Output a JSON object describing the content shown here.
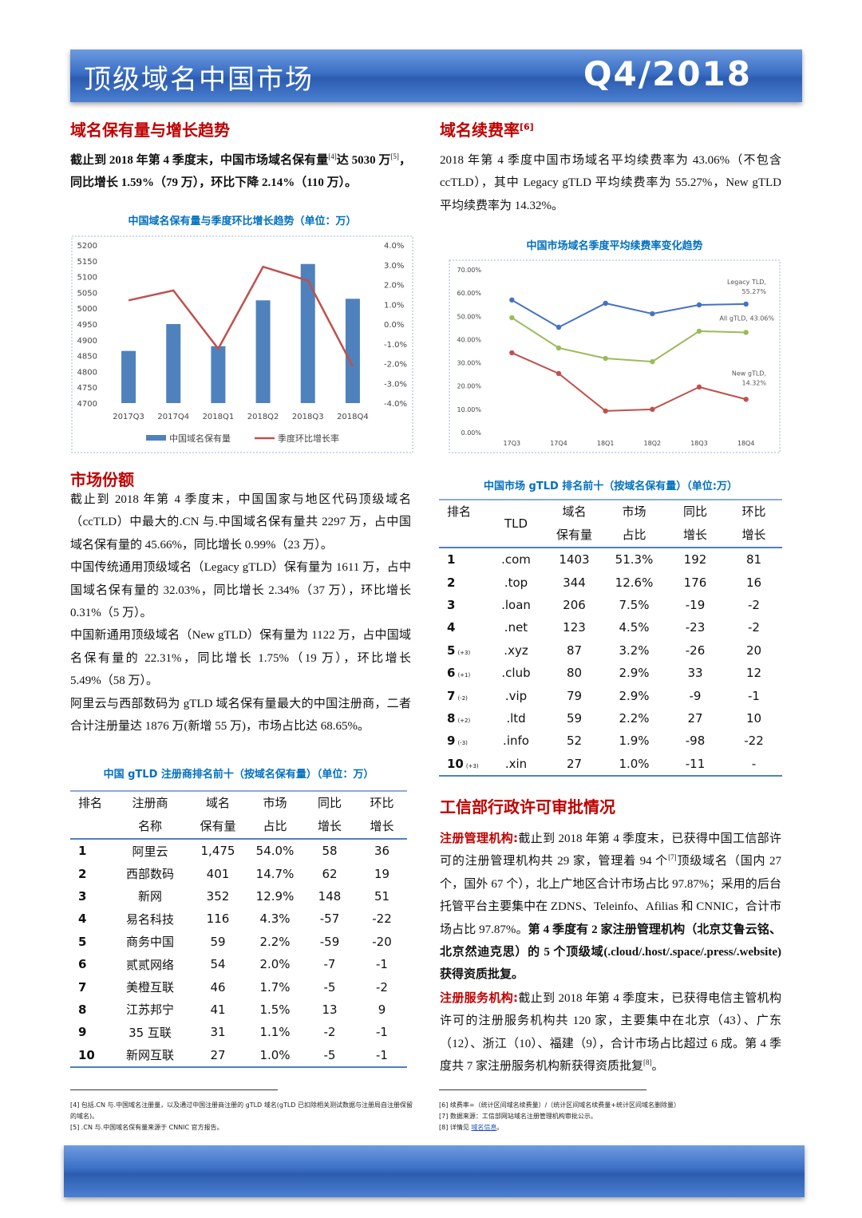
{
  "header": {
    "title": "顶级域名中国市场",
    "period": "Q4/2018"
  },
  "holdings": {
    "heading": "域名保有量与增长趋势",
    "paragraph": [
      {
        "bold": "截止到 2018 年第 4 季度末，中国市场域名保有量"
      },
      {
        "sup": "[4]"
      },
      {
        "bold": "达 5030 万"
      },
      {
        "sup": "[5]"
      },
      {
        "bold": "，同比增长 1.59%（79 万），环比下降 2.14%（110 万）。"
      }
    ]
  },
  "share": {
    "heading": "市场份额",
    "paragraphs": [
      [
        {
          "text": "截止到 2018 年第 4 季度末，中国国家与地区代码顶级域名（ccTLD）中最大的.CN 与.中国域名保有量共 2297 万，占中国域名保有量的 45.66%，同比增长 0.99%（23 万）。"
        }
      ],
      [
        {
          "text": "中国传统通用顶级域名（Legacy gTLD）保有量为 1611 万，占中国域名保有量的 32.03%，同比增长 2.34%（37 万），环比增长 0.31%（5 万）。"
        }
      ],
      [
        {
          "text": "中国新通用顶级域名（New gTLD）保有量为 1122 万，占中国域名保有量的 22.31%，同比增长 1.75%（19 万），环比增长 5.49%（58 万）。"
        }
      ],
      [
        {
          "text": "阿里云与西部数码为 gTLD 域名保有量最大的中国注册商，二者合计注册量达 1876 万(新增 55 万)，市场占比达 68.65%。"
        }
      ]
    ]
  },
  "renewal": {
    "heading": "域名续费率",
    "heading_note": "[6]",
    "paragraph": [
      {
        "text": "2018 年第 4 季度中国市场域名平均续费率为 43.06%（不包含 ccTLD），其中 Legacy gTLD 平均续费率为 55.27%，New gTLD 平均续费率为 14.32%。"
      }
    ]
  },
  "licensing": {
    "heading": "工信部行政许可审批情况",
    "paragraphs": [
      [
        {
          "label": "注册管理机构:"
        },
        {
          "text": "截止到 2018 年第 4 季度末，已获得中国工信部许可的注册管理机构共 29 家，管理着 94 个"
        },
        {
          "sup": "[7]"
        },
        {
          "text": "顶级域名（国内 27 个，国外 67 个），北上广地区合计市场占比 97.87%；采用的后台托管平台主要集中在 ZDNS、Teleinfo、Afilias 和 CNNIC，合计市场占比 97.87%。"
        },
        {
          "bold": "第 4 季度有 2 家注册管理机构（北京艾鲁云铭、北京然迪克思）的 5 个顶级域(.cloud/.host/.space/.press/.website)获得资质批复。"
        }
      ],
      [
        {
          "label": "注册服务机构:"
        },
        {
          "text": "截止到 2018 年第 4 季度末，已获得电信主管机构许可的注册服务机构共 120 家，主要集中在北京（43）、广东（12）、浙江（10）、福建（9），合计市场占比超过 6 成。第 4 季度共 7 家注册服务机构新获得资质批复"
        },
        {
          "sup": "[8]"
        },
        {
          "text": "。"
        }
      ]
    ]
  },
  "chart_data": [
    {
      "type": "combo",
      "title": "中国域名保有量与季度环比增长趋势（单位：万）",
      "categories": [
        "2017Q3",
        "2017Q4",
        "2018Q1",
        "2018Q2",
        "2018Q3",
        "2018Q4"
      ],
      "series": [
        {
          "name": "中国域名保有量",
          "type": "bar",
          "color": "#4f81bd",
          "values": [
            4865,
            4950,
            4880,
            5025,
            5140,
            5030
          ]
        },
        {
          "name": "季度环比增长率",
          "type": "line",
          "axis": "y2",
          "color": "#c0504d",
          "values": [
            1.2,
            1.7,
            -1.25,
            2.9,
            2.2,
            -2.14
          ]
        }
      ],
      "ylim": [
        4700,
        5200
      ],
      "yticks": [
        4700,
        4750,
        4800,
        4850,
        4900,
        4950,
        5000,
        5050,
        5100,
        5150,
        5200
      ],
      "y2lim": [
        -4,
        4
      ],
      "y2ticks": [
        {
          "value": -4,
          "label": "-4.0%"
        },
        {
          "value": -3,
          "label": "-3.0%"
        },
        {
          "value": -2,
          "label": "-2.0%"
        },
        {
          "value": -1,
          "label": "-1.0%"
        },
        {
          "value": 0,
          "label": "0.0%"
        },
        {
          "value": 1,
          "label": "1.0%"
        },
        {
          "value": 2,
          "label": "2.0%"
        },
        {
          "value": 3,
          "label": "3.0%"
        },
        {
          "value": 4,
          "label": "4.0%"
        }
      ],
      "grid": false,
      "legend": "bottom"
    },
    {
      "type": "line",
      "title": "中国市场域名季度平均续费率变化趋势",
      "categories": [
        "17Q3",
        "17Q4",
        "18Q1",
        "18Q2",
        "18Q3",
        "18Q4"
      ],
      "series": [
        {
          "name": "Legacy TLD",
          "color": "#4472c4",
          "values": [
            57.0,
            45.3,
            55.6,
            51.1,
            54.9,
            55.27
          ],
          "label_lines": [
            "Legacy TLD,",
            "55.27%"
          ]
        },
        {
          "name": "All gTLD",
          "color": "#9bbb59",
          "values": [
            49.4,
            36.4,
            31.9,
            30.5,
            43.6,
            43.06
          ],
          "label_lines": [
            "All gTLD, 43.06%"
          ]
        },
        {
          "name": "New gTLD",
          "color": "#c0504d",
          "values": [
            34.3,
            25.4,
            9.3,
            10.0,
            19.6,
            14.32
          ],
          "label_lines": [
            "New gTLD,",
            "14.32%"
          ]
        }
      ],
      "ylim": [
        0,
        70
      ],
      "yticks": [
        {
          "value": 0,
          "label": "0.00%"
        },
        {
          "value": 10,
          "label": "10.00%"
        },
        {
          "value": 20,
          "label": "20.00%"
        },
        {
          "value": 30,
          "label": "30.00%"
        },
        {
          "value": 40,
          "label": "40.00%"
        },
        {
          "value": 50,
          "label": "50.00%"
        },
        {
          "value": 60,
          "label": "60.00%"
        },
        {
          "value": 70,
          "label": "70.00%"
        }
      ],
      "grid": false
    }
  ],
  "tables": {
    "registrars": {
      "title": "中国 gTLD 注册商排名前十（按域名保有量）（单位：万）",
      "header": [
        [
          "排名"
        ],
        [
          "注册商",
          "名称"
        ],
        [
          "域名",
          "保有量"
        ],
        [
          "市场",
          "占比"
        ],
        [
          "同比",
          "增长"
        ],
        [
          "环比",
          "增长"
        ]
      ],
      "rows": [
        {
          "rank": "1",
          "cells": [
            "阿里云",
            "1,475",
            "54.0%",
            "58",
            "36"
          ]
        },
        {
          "rank": "2",
          "cells": [
            "西部数码",
            "401",
            "14.7%",
            "62",
            "19"
          ]
        },
        {
          "rank": "3",
          "cells": [
            "新网",
            "352",
            "12.9%",
            "148",
            "51"
          ]
        },
        {
          "rank": "4",
          "cells": [
            "易名科技",
            "116",
            "4.3%",
            "-57",
            "-22"
          ]
        },
        {
          "rank": "5",
          "cells": [
            "商务中国",
            "59",
            "2.2%",
            "-59",
            "-20"
          ]
        },
        {
          "rank": "6",
          "cells": [
            "贰贰网络",
            "54",
            "2.0%",
            "-7",
            "-1"
          ]
        },
        {
          "rank": "7",
          "cells": [
            "美橙互联",
            "46",
            "1.7%",
            "-5",
            "-2"
          ]
        },
        {
          "rank": "8",
          "cells": [
            "江苏邦宁",
            "41",
            "1.5%",
            "13",
            "9"
          ]
        },
        {
          "rank": "9",
          "cells": [
            "35 互联",
            "31",
            "1.1%",
            "-2",
            "-1"
          ]
        },
        {
          "rank": "10",
          "cells": [
            "新网互联",
            "27",
            "1.0%",
            "-5",
            "-1"
          ]
        }
      ]
    },
    "gtld": {
      "title": "中国市场 gTLD 排名前十（按域名保有量）（单位:万）",
      "header": [
        [
          "排名"
        ],
        [
          "TLD"
        ],
        [
          "域名",
          "保有量"
        ],
        [
          "市场",
          "占比"
        ],
        [
          "同比",
          "增长"
        ],
        [
          "环比",
          "增长"
        ]
      ],
      "rows": [
        {
          "rank": "1",
          "cells": [
            ".com",
            "1403",
            "51.3%",
            "192",
            "81"
          ]
        },
        {
          "rank": "2",
          "cells": [
            ".top",
            "344",
            "12.6%",
            "176",
            "16"
          ]
        },
        {
          "rank": "3",
          "cells": [
            ".loan",
            "206",
            "7.5%",
            "-19",
            "-2"
          ]
        },
        {
          "rank": "4",
          "cells": [
            ".net",
            "123",
            "4.5%",
            "-23",
            "-2"
          ]
        },
        {
          "rank": "5",
          "change": "(+3)",
          "cells": [
            ".xyz",
            "87",
            "3.2%",
            "-26",
            "20"
          ]
        },
        {
          "rank": "6",
          "change": "(+1)",
          "cells": [
            ".club",
            "80",
            "2.9%",
            "33",
            "12"
          ]
        },
        {
          "rank": "7",
          "change": "(-2)",
          "cells": [
            ".vip",
            "79",
            "2.9%",
            "-9",
            "-1"
          ]
        },
        {
          "rank": "8",
          "change": "(+2)",
          "cells": [
            ".ltd",
            "59",
            "2.2%",
            "27",
            "10"
          ]
        },
        {
          "rank": "9",
          "change": "(-3)",
          "cells": [
            ".info",
            "52",
            "1.9%",
            "-98",
            "-22"
          ]
        },
        {
          "rank": "10",
          "change": "(+3)",
          "cells": [
            ".xin",
            "27",
            "1.0%",
            "-11",
            "-"
          ]
        }
      ]
    }
  },
  "footnotes": {
    "left": [
      [
        {
          "text": "[4] 包括.CN 与.中国域名注册量，以及通过中国注册商注册的 gTLD 域名(gTLD 已扣除相关测试数据与注册局自注册保留的域名)。"
        }
      ],
      [
        {
          "text": "[5] .CN 与.中国域名保有量来源于 CNNIC 官方报告。"
        }
      ]
    ],
    "right": [
      [
        {
          "text": "[6] 续费率=（统计区间域名续费量）/（统计区间域名续费量+统计区间域名删除量）"
        }
      ],
      [
        {
          "text": "[7] 数据来源：工信部网站域名注册管理机构审批公示。"
        }
      ],
      [
        {
          "text": "[8] 详情见 "
        },
        {
          "link": "域名信息"
        },
        {
          "text": "。"
        }
      ]
    ]
  }
}
